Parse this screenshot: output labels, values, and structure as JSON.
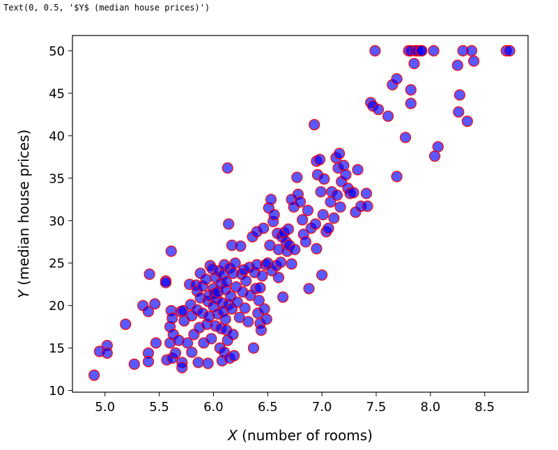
{
  "output_text": "Text(0, 0.5, '$Y$ (median house prices)')",
  "chart_data": {
    "type": "scatter",
    "title": "",
    "xlabel_var": "X",
    "xlabel_rest": " (number of rooms)",
    "ylabel_var": "Y",
    "ylabel_rest": " (median house prices)",
    "xlim": [
      4.7,
      8.9
    ],
    "ylim": [
      9.8,
      51.8
    ],
    "xticks": [
      5.0,
      5.5,
      6.0,
      6.5,
      7.0,
      7.5,
      8.0,
      8.5
    ],
    "xtick_labels": [
      "5.0",
      "5.5",
      "6.0",
      "6.5",
      "7.0",
      "7.5",
      "8.0",
      "8.5"
    ],
    "yticks": [
      10,
      15,
      20,
      25,
      30,
      35,
      40,
      45,
      50
    ],
    "ytick_labels": [
      "10",
      "15",
      "20",
      "25",
      "30",
      "35",
      "40",
      "45",
      "50"
    ],
    "grid": false,
    "marker": {
      "fill": "#0000ff",
      "fill_opacity": 0.65,
      "edge": "#ff0000"
    },
    "points": [
      [
        4.9,
        11.8
      ],
      [
        4.95,
        14.6
      ],
      [
        5.02,
        15.3
      ],
      [
        5.02,
        14.4
      ],
      [
        5.19,
        17.8
      ],
      [
        5.27,
        13.1
      ],
      [
        5.35,
        20.0
      ],
      [
        5.4,
        19.3
      ],
      [
        5.4,
        14.4
      ],
      [
        5.4,
        13.4
      ],
      [
        5.41,
        23.7
      ],
      [
        5.46,
        20.2
      ],
      [
        5.47,
        15.6
      ],
      [
        5.56,
        22.9
      ],
      [
        5.56,
        22.7
      ],
      [
        5.57,
        13.6
      ],
      [
        5.6,
        17.5
      ],
      [
        5.6,
        15.6
      ],
      [
        5.61,
        26.4
      ],
      [
        5.61,
        19.4
      ],
      [
        5.62,
        18.5
      ],
      [
        5.62,
        13.8
      ],
      [
        5.63,
        16.6
      ],
      [
        5.65,
        14.4
      ],
      [
        5.68,
        15.9
      ],
      [
        5.7,
        19.3
      ],
      [
        5.71,
        13.3
      ],
      [
        5.71,
        12.7
      ],
      [
        5.72,
        19.4
      ],
      [
        5.73,
        18.2
      ],
      [
        5.76,
        15.6
      ],
      [
        5.78,
        22.5
      ],
      [
        5.79,
        20.1
      ],
      [
        5.8,
        14.5
      ],
      [
        5.8,
        18.8
      ],
      [
        5.82,
        16.6
      ],
      [
        5.84,
        22.4
      ],
      [
        5.85,
        21.7
      ],
      [
        5.85,
        19.5
      ],
      [
        5.86,
        13.3
      ],
      [
        5.87,
        17.4
      ],
      [
        5.88,
        23.8
      ],
      [
        5.88,
        20.9
      ],
      [
        5.9,
        22.3
      ],
      [
        5.9,
        19.1
      ],
      [
        5.91,
        15.6
      ],
      [
        5.93,
        23.1
      ],
      [
        5.94,
        17.8
      ],
      [
        5.95,
        20.5
      ],
      [
        5.95,
        13.2
      ],
      [
        5.96,
        21.2
      ],
      [
        5.96,
        18.7
      ],
      [
        5.97,
        24.7
      ],
      [
        5.98,
        16.1
      ],
      [
        5.99,
        24.3
      ],
      [
        6.0,
        22.0
      ],
      [
        6.0,
        19.9
      ],
      [
        6.01,
        21.4
      ],
      [
        6.02,
        23.3
      ],
      [
        6.02,
        17.6
      ],
      [
        6.03,
        20.8
      ],
      [
        6.04,
        19.0
      ],
      [
        6.04,
        21.6
      ],
      [
        6.05,
        24.1
      ],
      [
        6.06,
        15.0
      ],
      [
        6.07,
        22.6
      ],
      [
        6.07,
        17.3
      ],
      [
        6.08,
        20.3
      ],
      [
        6.08,
        13.5
      ],
      [
        6.09,
        23.6
      ],
      [
        6.09,
        19.3
      ],
      [
        6.1,
        24.8
      ],
      [
        6.1,
        14.5
      ],
      [
        6.11,
        21.9
      ],
      [
        6.11,
        18.4
      ],
      [
        6.12,
        22.8
      ],
      [
        6.12,
        17.1
      ],
      [
        6.13,
        15.9
      ],
      [
        6.13,
        36.2
      ],
      [
        6.14,
        29.6
      ],
      [
        6.14,
        20.1
      ],
      [
        6.15,
        13.8
      ],
      [
        6.15,
        24.4
      ],
      [
        6.16,
        21.1
      ],
      [
        6.17,
        27.1
      ],
      [
        6.17,
        19.6
      ],
      [
        6.18,
        16.6
      ],
      [
        6.18,
        23.8
      ],
      [
        6.19,
        14.1
      ],
      [
        6.2,
        25.0
      ],
      [
        6.21,
        22.2
      ],
      [
        6.22,
        20.4
      ],
      [
        6.24,
        18.6
      ],
      [
        6.25,
        27.0
      ],
      [
        6.26,
        23.7
      ],
      [
        6.27,
        21.6
      ],
      [
        6.28,
        24.2
      ],
      [
        6.29,
        19.7
      ],
      [
        6.3,
        22.9
      ],
      [
        6.32,
        18.1
      ],
      [
        6.33,
        24.5
      ],
      [
        6.34,
        21.2
      ],
      [
        6.36,
        28.1
      ],
      [
        6.37,
        15.0
      ],
      [
        6.38,
        23.9
      ],
      [
        6.39,
        22.0
      ],
      [
        6.4,
        28.7
      ],
      [
        6.4,
        24.8
      ],
      [
        6.41,
        19.1
      ],
      [
        6.42,
        20.6
      ],
      [
        6.43,
        17.9
      ],
      [
        6.43,
        22.1
      ],
      [
        6.44,
        17.1
      ],
      [
        6.45,
        23.5
      ],
      [
        6.46,
        29.1
      ],
      [
        6.47,
        19.6
      ],
      [
        6.48,
        24.8
      ],
      [
        6.49,
        18.4
      ],
      [
        6.5,
        25.0
      ],
      [
        6.51,
        31.5
      ],
      [
        6.52,
        27.1
      ],
      [
        6.53,
        32.5
      ],
      [
        6.54,
        24.1
      ],
      [
        6.55,
        29.9
      ],
      [
        6.56,
        30.7
      ],
      [
        6.58,
        24.7
      ],
      [
        6.59,
        28.5
      ],
      [
        6.6,
        23.3
      ],
      [
        6.6,
        26.6
      ],
      [
        6.62,
        25.1
      ],
      [
        6.63,
        28.1
      ],
      [
        6.64,
        21.0
      ],
      [
        6.65,
        28.6
      ],
      [
        6.67,
        27.5
      ],
      [
        6.68,
        26.4
      ],
      [
        6.69,
        29.0
      ],
      [
        6.7,
        27.1
      ],
      [
        6.72,
        32.5
      ],
      [
        6.72,
        24.9
      ],
      [
        6.74,
        31.6
      ],
      [
        6.75,
        26.6
      ],
      [
        6.77,
        35.1
      ],
      [
        6.78,
        33.1
      ],
      [
        6.8,
        32.2
      ],
      [
        6.82,
        30.1
      ],
      [
        6.83,
        28.4
      ],
      [
        6.85,
        27.5
      ],
      [
        6.87,
        31.2
      ],
      [
        6.88,
        22.0
      ],
      [
        6.9,
        29.1
      ],
      [
        6.93,
        41.3
      ],
      [
        6.94,
        29.6
      ],
      [
        6.95,
        26.7
      ],
      [
        6.95,
        37.0
      ],
      [
        6.96,
        35.4
      ],
      [
        6.98,
        37.2
      ],
      [
        6.99,
        33.4
      ],
      [
        7.0,
        23.6
      ],
      [
        7.01,
        30.7
      ],
      [
        7.02,
        34.9
      ],
      [
        7.04,
        28.7
      ],
      [
        7.06,
        29.1
      ],
      [
        7.08,
        32.2
      ],
      [
        7.09,
        33.4
      ],
      [
        7.11,
        30.3
      ],
      [
        7.13,
        37.4
      ],
      [
        7.14,
        33.0
      ],
      [
        7.15,
        36.2
      ],
      [
        7.16,
        37.9
      ],
      [
        7.17,
        31.6
      ],
      [
        7.18,
        34.6
      ],
      [
        7.2,
        36.5
      ],
      [
        7.22,
        35.4
      ],
      [
        7.24,
        33.8
      ],
      [
        7.26,
        33.2
      ],
      [
        7.29,
        33.3
      ],
      [
        7.31,
        31.0
      ],
      [
        7.33,
        36.0
      ],
      [
        7.36,
        31.7
      ],
      [
        7.41,
        33.2
      ],
      [
        7.42,
        31.7
      ],
      [
        7.45,
        43.9
      ],
      [
        7.47,
        43.5
      ],
      [
        7.49,
        50.0
      ],
      [
        7.52,
        43.1
      ],
      [
        7.61,
        42.3
      ],
      [
        7.65,
        46.0
      ],
      [
        7.69,
        46.7
      ],
      [
        7.69,
        35.2
      ],
      [
        7.77,
        39.8
      ],
      [
        7.8,
        50.0
      ],
      [
        7.82,
        50.0
      ],
      [
        7.82,
        45.4
      ],
      [
        7.82,
        43.8
      ],
      [
        7.85,
        48.5
      ],
      [
        7.86,
        50.0
      ],
      [
        7.88,
        50.0
      ],
      [
        7.91,
        50.0
      ],
      [
        7.92,
        50.0
      ],
      [
        8.03,
        50.0
      ],
      [
        8.04,
        37.6
      ],
      [
        8.07,
        38.7
      ],
      [
        8.25,
        48.3
      ],
      [
        8.26,
        42.8
      ],
      [
        8.27,
        44.8
      ],
      [
        8.3,
        50.0
      ],
      [
        8.34,
        41.7
      ],
      [
        8.38,
        50.0
      ],
      [
        8.4,
        48.8
      ],
      [
        8.7,
        50.0
      ],
      [
        8.73,
        50.0
      ]
    ]
  }
}
